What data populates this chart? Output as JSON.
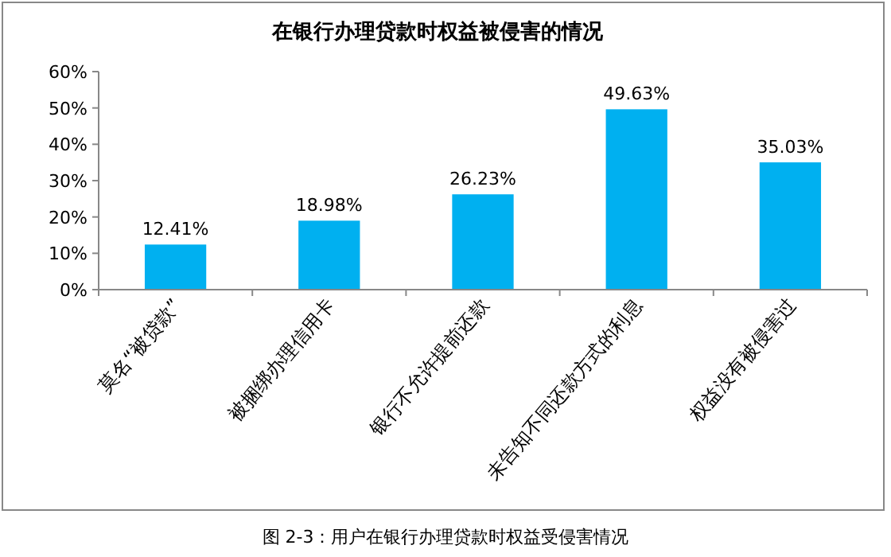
{
  "chart_data": {
    "type": "bar",
    "title": "在银行办理贷款时权益被侵害的情况",
    "categories": [
      "莫名“被贷款”",
      "被捆绑办理信用卡",
      "银行不允许提前还款",
      "未告知不同还款方式的利息",
      "权益没有被侵害过"
    ],
    "values": [
      12.41,
      18.98,
      26.23,
      49.63,
      35.03
    ],
    "value_labels": [
      "12.41%",
      "18.98%",
      "26.23%",
      "49.63%",
      "35.03%"
    ],
    "color": "#00b0f0",
    "ylim": [
      0,
      60
    ],
    "yticks": [
      {
        "value": 0,
        "label": "0%"
      },
      {
        "value": 10,
        "label": "10%"
      },
      {
        "value": 20,
        "label": "20%"
      },
      {
        "value": 30,
        "label": "30%"
      },
      {
        "value": 40,
        "label": "40%"
      },
      {
        "value": 50,
        "label": "50%"
      },
      {
        "value": 60,
        "label": "60%"
      }
    ],
    "annotations": [
      "图 2-3：用户在银行办理贷款时权益受侵害情况"
    ]
  }
}
